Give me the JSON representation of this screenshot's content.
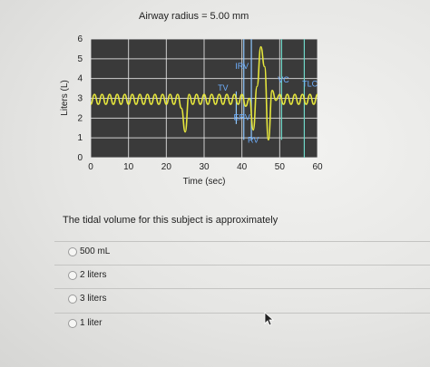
{
  "header": {
    "title": "Airway radius = 5.00 mm"
  },
  "chart_data": {
    "type": "line",
    "xlabel": "Time (sec)",
    "ylabel": "Liters (L)",
    "xlim": [
      0,
      60
    ],
    "ylim": [
      0,
      6
    ],
    "xticks": [
      0,
      10,
      20,
      30,
      40,
      50,
      60
    ],
    "yticks": [
      0,
      1,
      2,
      3,
      4,
      5,
      6
    ],
    "grid": true,
    "background": "#3a3a3a",
    "series": [
      {
        "color": "#e6e63c",
        "x": [
          0,
          1,
          2,
          3,
          4,
          5,
          6,
          7,
          8,
          9,
          10,
          11,
          12,
          13,
          14,
          15,
          16,
          17,
          18,
          19,
          20,
          21,
          22,
          23,
          24,
          25,
          26,
          27,
          28,
          29,
          30,
          31,
          32,
          33,
          34,
          35,
          36,
          37,
          38,
          39,
          40,
          41,
          42,
          43,
          44,
          45,
          46,
          47,
          48,
          49,
          50,
          51,
          52,
          53,
          54,
          55,
          56,
          57,
          58,
          59,
          60
        ],
        "y": [
          2.7,
          3.2,
          2.7,
          3.2,
          2.7,
          3.2,
          2.7,
          3.2,
          2.7,
          3.2,
          2.7,
          3.2,
          2.7,
          3.2,
          2.7,
          3.2,
          2.7,
          3.2,
          2.7,
          3.2,
          2.7,
          3.2,
          2.7,
          3.2,
          2.5,
          1.3,
          3.2,
          2.7,
          3.2,
          2.7,
          3.2,
          2.7,
          3.2,
          2.7,
          3.2,
          2.7,
          3.2,
          2.7,
          3.2,
          2.7,
          3.2,
          2.6,
          3.0,
          1.4,
          3.6,
          5.6,
          4.6,
          0.9,
          3.4,
          2.9,
          3.2,
          2.7,
          3.2,
          2.7,
          3.2,
          2.7,
          3.2,
          2.7,
          3.2,
          2.7,
          3.2
        ]
      }
    ],
    "annotations": [
      {
        "label": "IRV",
        "color": "#6fb0ff",
        "x": 40,
        "y": 4.5
      },
      {
        "label": "TV",
        "color": "#6fb0ff",
        "x": 35,
        "y": 3.4
      },
      {
        "label": "ERV",
        "color": "#6fb0ff",
        "x": 40,
        "y": 1.9
      },
      {
        "label": "RV",
        "color": "#6fb0ff",
        "x": 43,
        "y": 0.75
      },
      {
        "label": "VC",
        "color": "#6fb0ff",
        "x": 51,
        "y": 3.8
      },
      {
        "label": "TLC",
        "color": "#6fb0ff",
        "x": 58,
        "y": 3.6
      }
    ],
    "markers": [
      {
        "color": "#8fc8ff",
        "x": 38.5,
        "y1": 1.7,
        "y2": 3.35
      },
      {
        "color": "#8fc8ff",
        "x": 40.5,
        "y1": 0.9,
        "y2": 6.0
      },
      {
        "color": "#8fc8ff",
        "x": 42.5,
        "y1": 0.9,
        "y2": 6.0
      },
      {
        "color": "#6fd8c8",
        "x": 50.5,
        "y1": 0.9,
        "y2": 6.0
      },
      {
        "color": "#6fd8c8",
        "x": 56.5,
        "y1": 0.0,
        "y2": 6.0
      }
    ]
  },
  "question": {
    "text": "The tidal volume for this subject is approximately"
  },
  "options": [
    "500 mL",
    "2 liters",
    "3 liters",
    "1 liter"
  ]
}
